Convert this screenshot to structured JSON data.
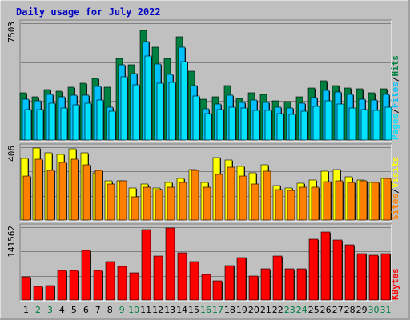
{
  "chart_data": [
    {
      "type": "bar",
      "title": "Daily usage for July 2022",
      "categories": [
        "1",
        "2",
        "3",
        "4",
        "5",
        "6",
        "7",
        "8",
        "9",
        "10",
        "11",
        "12",
        "13",
        "14",
        "15",
        "16",
        "17",
        "18",
        "19",
        "20",
        "21",
        "22",
        "23",
        "24",
        "25",
        "26",
        "27",
        "28",
        "29",
        "30",
        "31"
      ],
      "weekend_days": [
        "2",
        "3",
        "9",
        "10",
        "16",
        "17",
        "23",
        "24",
        "30",
        "31"
      ],
      "max_label": "7503",
      "ylim": [
        0,
        7503
      ],
      "series": [
        {
          "name": "Hits",
          "color": "#008040",
          "values": [
            3050,
            2800,
            3250,
            3150,
            3400,
            3650,
            3950,
            3400,
            5250,
            4850,
            7050,
            5950,
            5250,
            6650,
            4400,
            2600,
            2750,
            3500,
            2650,
            3050,
            2950,
            2500,
            2450,
            2800,
            3350,
            3800,
            3500,
            3350,
            3300,
            3050,
            3300
          ]
        },
        {
          "name": "Files",
          "color": "#00c0ff",
          "values": [
            2600,
            2500,
            2950,
            2800,
            2900,
            2900,
            3450,
            2100,
            4850,
            4250,
            6300,
            4900,
            4200,
            5950,
            3500,
            2000,
            2300,
            2900,
            2400,
            2550,
            2400,
            2100,
            2050,
            2350,
            2700,
            3200,
            3100,
            2950,
            2600,
            2550,
            2950
          ]
        },
        {
          "name": "Pages",
          "color": "#00e0ff",
          "values": [
            1950,
            1950,
            2350,
            2050,
            2250,
            2350,
            2550,
            1850,
            4050,
            3550,
            5400,
            3650,
            3700,
            5050,
            2850,
            1700,
            1950,
            2100,
            2050,
            1900,
            1900,
            1700,
            1650,
            1850,
            2150,
            2500,
            2300,
            2050,
            1950,
            1900,
            2100
          ]
        }
      ],
      "series_label_separators": [
        "/",
        "/"
      ]
    },
    {
      "type": "bar",
      "categories": [
        "1",
        "2",
        "3",
        "4",
        "5",
        "6",
        "7",
        "8",
        "9",
        "10",
        "11",
        "12",
        "13",
        "14",
        "15",
        "16",
        "17",
        "18",
        "19",
        "20",
        "21",
        "22",
        "23",
        "24",
        "25",
        "26",
        "27",
        "28",
        "29",
        "30",
        "31"
      ],
      "max_label": "406",
      "ylim": [
        0,
        406
      ],
      "series": [
        {
          "name": "Visits",
          "color": "#ffff00",
          "values": [
            345,
            400,
            375,
            365,
            395,
            375,
            265,
            220,
            220,
            180,
            200,
            180,
            210,
            230,
            280,
            210,
            350,
            335,
            300,
            265,
            310,
            190,
            180,
            205,
            225,
            270,
            280,
            240,
            225,
            210,
            232
          ]
        },
        {
          "name": "Sites",
          "color": "#ff8000",
          "values": [
            245,
            340,
            275,
            320,
            340,
            310,
            275,
            200,
            220,
            130,
            185,
            170,
            185,
            210,
            275,
            185,
            255,
            295,
            245,
            200,
            270,
            170,
            165,
            185,
            185,
            215,
            220,
            210,
            220,
            210,
            232
          ]
        }
      ],
      "series_label_separators": [
        "/"
      ]
    },
    {
      "type": "bar",
      "categories": [
        "1",
        "2",
        "3",
        "4",
        "5",
        "6",
        "7",
        "8",
        "9",
        "10",
        "11",
        "12",
        "13",
        "14",
        "15",
        "16",
        "17",
        "18",
        "19",
        "20",
        "21",
        "22",
        "23",
        "24",
        "25",
        "26",
        "27",
        "28",
        "29",
        "30",
        "31"
      ],
      "max_label": "141562",
      "ylim": [
        0,
        141562
      ],
      "series": [
        {
          "name": "KBytes",
          "color": "#ff0000",
          "values": [
            45000,
            26000,
            28000,
            57000,
            57000,
            97000,
            57000,
            75000,
            66000,
            53000,
            137000,
            85000,
            140000,
            92000,
            75000,
            50000,
            38000,
            67000,
            82000,
            46000,
            60000,
            86000,
            60000,
            60000,
            118000,
            132000,
            117000,
            108000,
            90000,
            87000,
            90000
          ]
        }
      ],
      "series_label_separators": []
    }
  ]
}
